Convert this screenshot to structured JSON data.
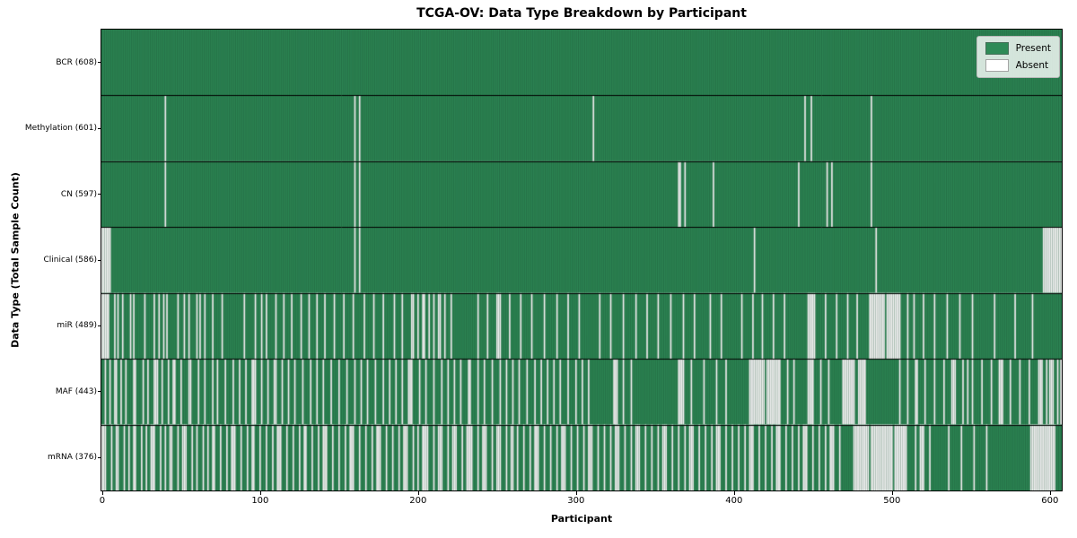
{
  "chart_data": {
    "type": "heatmap",
    "title": "TCGA-OV: Data Type Breakdown by Participant",
    "xlabel": "Participant",
    "ylabel": "Data Type (Total Sample Count)",
    "n_participants": 608,
    "xticks": [
      0,
      100,
      200,
      300,
      400,
      500,
      600
    ],
    "legend": [
      {
        "label": "Present",
        "color": "#2e8b57"
      },
      {
        "label": "Absent",
        "color": "#ffffff"
      }
    ],
    "colors": {
      "present": "#2e8b57",
      "absent": "#ffffff",
      "bar_edge": "#000000",
      "row_separator": "#000000",
      "plot_border": "#000000"
    },
    "rows": [
      {
        "label": "BCR (608)",
        "data_type": "BCR",
        "present_count": 608,
        "absent": []
      },
      {
        "label": "Methylation (601)",
        "data_type": "Methylation",
        "present_count": 601,
        "absent": [
          40,
          160,
          163,
          311,
          445,
          449,
          487
        ]
      },
      {
        "label": "CN (597)",
        "data_type": "CN",
        "present_count": 597,
        "absent": [
          40,
          160,
          163,
          365,
          366,
          369,
          387,
          441,
          459,
          462,
          487
        ]
      },
      {
        "label": "Clinical (586)",
        "data_type": "Clinical",
        "present_count": 586,
        "absent": [
          [
            0,
            5
          ],
          160,
          163,
          413,
          490,
          [
            596,
            607
          ]
        ]
      },
      {
        "label": "miR (489)",
        "data_type": "miR",
        "present_count": 489,
        "absent": [
          [
            0,
            4
          ],
          8,
          10,
          13,
          18,
          20,
          27,
          33,
          36,
          39,
          41,
          48,
          52,
          55,
          60,
          62,
          65,
          70,
          76,
          90,
          97,
          101,
          104,
          110,
          115,
          120,
          126,
          131,
          136,
          141,
          147,
          153,
          159,
          166,
          172,
          178,
          185,
          190,
          [
            196,
            197
          ],
          200,
          [
            203,
            204
          ],
          207,
          210,
          [
            213,
            214
          ],
          217,
          221,
          238,
          244,
          [
            250,
            252
          ],
          258,
          265,
          272,
          280,
          288,
          295,
          302,
          315,
          322,
          330,
          338,
          345,
          352,
          360,
          368,
          375,
          385,
          392,
          405,
          412,
          418,
          425,
          432,
          [
            447,
            451
          ],
          458,
          465,
          472,
          478,
          [
            486,
            495
          ],
          [
            497,
            505
          ],
          510,
          514,
          520,
          527,
          535,
          543,
          551,
          565,
          578,
          589
        ]
      },
      {
        "label": "MAF (443)",
        "data_type": "MAF",
        "present_count": 443,
        "absent": [
          2,
          5,
          [
            8,
            9
          ],
          12,
          15,
          [
            20,
            21
          ],
          26,
          29,
          [
            33,
            35
          ],
          38,
          42,
          [
            45,
            46
          ],
          50,
          [
            55,
            56
          ],
          61,
          65,
          70,
          73,
          78,
          83,
          87,
          91,
          [
            95,
            97
          ],
          101,
          105,
          [
            109,
            110
          ],
          114,
          118,
          122,
          127,
          132,
          136,
          140,
          145,
          150,
          155,
          160,
          164,
          168,
          173,
          178,
          182,
          186,
          190,
          [
            194,
            196
          ],
          201,
          205,
          210,
          215,
          219,
          223,
          227,
          [
            232,
            233
          ],
          238,
          242,
          247,
          252,
          256,
          260,
          264,
          269,
          274,
          278,
          282,
          286,
          290,
          295,
          300,
          304,
          308,
          [
            324,
            326
          ],
          330,
          335,
          [
            365,
            368
          ],
          373,
          381,
          389,
          395,
          [
            410,
            419
          ],
          [
            421,
            429
          ],
          434,
          438,
          [
            447,
            450
          ],
          455,
          460,
          [
            469,
            476
          ],
          [
            479,
            483
          ],
          505,
          510,
          [
            515,
            516
          ],
          521,
          527,
          533,
          [
            538,
            540
          ],
          545,
          548,
          551,
          557,
          563,
          [
            568,
            570
          ],
          575,
          581,
          587,
          [
            593,
            595
          ],
          598,
          [
            600,
            602
          ],
          605,
          607
        ]
      },
      {
        "label": "mRNA (376)",
        "data_type": "mRNA",
        "present_count": 376,
        "absent": [
          [
            0,
            2
          ],
          6,
          [
            9,
            10
          ],
          14,
          17,
          [
            20,
            21
          ],
          25,
          28,
          [
            31,
            33
          ],
          37,
          40,
          [
            43,
            44
          ],
          48,
          [
            51,
            53
          ],
          57,
          60,
          64,
          67,
          [
            70,
            71
          ],
          75,
          79,
          [
            82,
            84
          ],
          88,
          92,
          [
            95,
            96
          ],
          100,
          104,
          108,
          [
            111,
            113
          ],
          117,
          121,
          125,
          [
            128,
            129
          ],
          133,
          137,
          [
            140,
            142
          ],
          146,
          150,
          154,
          [
            157,
            159
          ],
          163,
          167,
          171,
          [
            174,
            176
          ],
          180,
          184,
          188,
          [
            191,
            193
          ],
          197,
          200,
          [
            203,
            206
          ],
          210,
          [
            213,
            215
          ],
          219,
          [
            222,
            224
          ],
          228,
          [
            231,
            234
          ],
          238,
          [
            241,
            243
          ],
          247,
          [
            250,
            252
          ],
          256,
          [
            259,
            260
          ],
          263,
          267,
          271,
          [
            274,
            276
          ],
          280,
          284,
          288,
          [
            291,
            293
          ],
          297,
          301,
          305,
          [
            308,
            310
          ],
          314,
          318,
          322,
          [
            325,
            327
          ],
          331,
          335,
          [
            338,
            340
          ],
          344,
          348,
          352,
          [
            355,
            357
          ],
          361,
          365,
          369,
          [
            372,
            374
          ],
          378,
          382,
          386,
          [
            389,
            391
          ],
          395,
          399,
          403,
          407,
          [
            410,
            412
          ],
          416,
          420,
          424,
          [
            427,
            429
          ],
          433,
          437,
          441,
          [
            444,
            446
          ],
          450,
          454,
          458,
          [
            461,
            463
          ],
          467,
          [
            476,
            485
          ],
          [
            487,
            500
          ],
          [
            502,
            509
          ],
          515,
          [
            518,
            520
          ],
          524,
          536,
          544,
          552,
          560,
          [
            588,
            603
          ]
        ]
      }
    ]
  }
}
